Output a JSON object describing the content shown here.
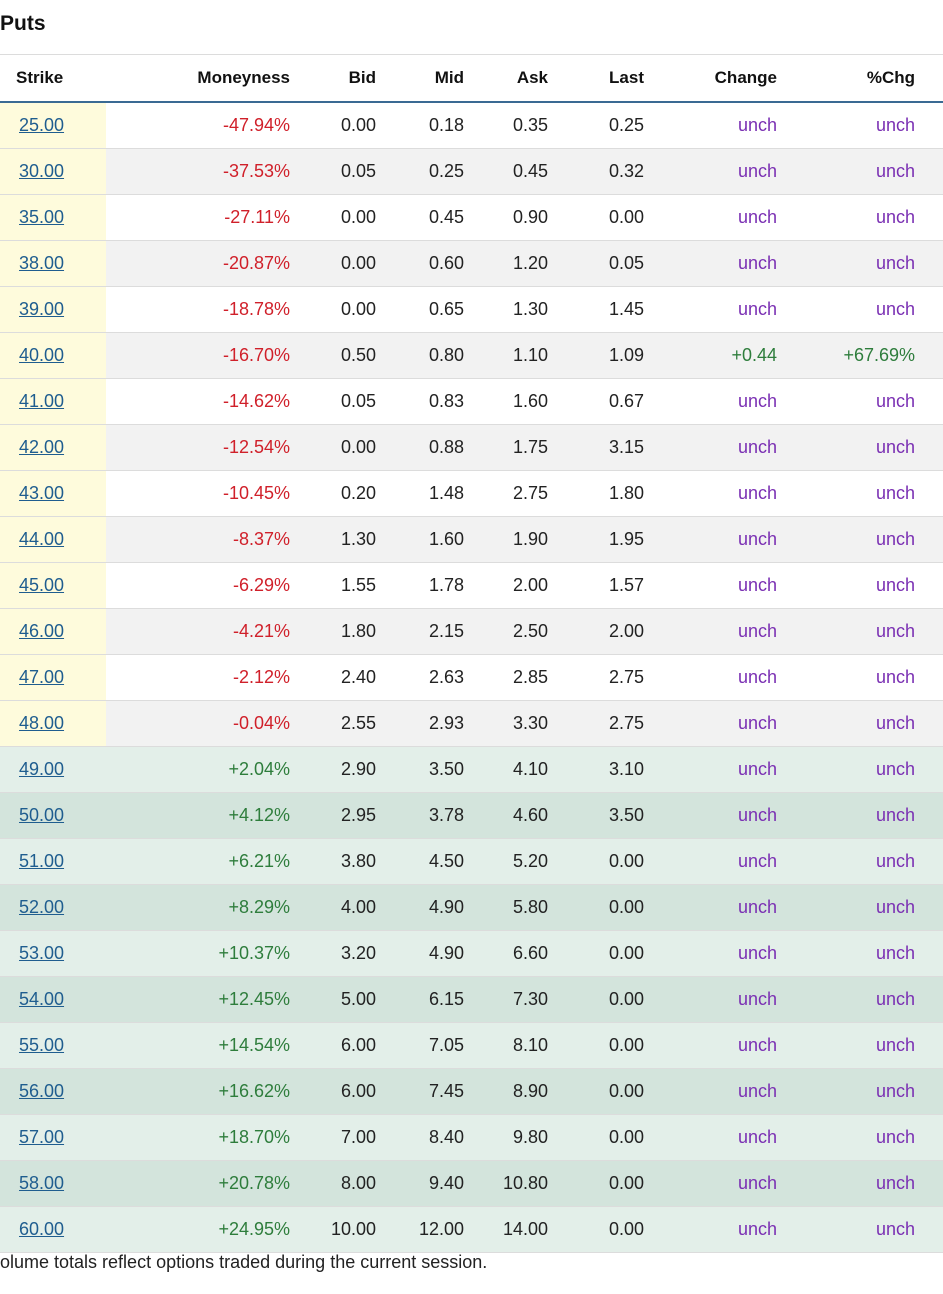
{
  "title": "Puts",
  "headers": {
    "strike": "Strike",
    "moneyness": "Moneyness",
    "bid": "Bid",
    "mid": "Mid",
    "ask": "Ask",
    "last": "Last",
    "change": "Change",
    "pct_change": "%Chg"
  },
  "rows": [
    {
      "strike": "25.00",
      "moneyness": "-47.94%",
      "bid": "0.00",
      "mid": "0.18",
      "ask": "0.35",
      "last": "0.25",
      "change": "unch",
      "pct": "unch"
    },
    {
      "strike": "30.00",
      "moneyness": "-37.53%",
      "bid": "0.05",
      "mid": "0.25",
      "ask": "0.45",
      "last": "0.32",
      "change": "unch",
      "pct": "unch"
    },
    {
      "strike": "35.00",
      "moneyness": "-27.11%",
      "bid": "0.00",
      "mid": "0.45",
      "ask": "0.90",
      "last": "0.00",
      "change": "unch",
      "pct": "unch"
    },
    {
      "strike": "38.00",
      "moneyness": "-20.87%",
      "bid": "0.00",
      "mid": "0.60",
      "ask": "1.20",
      "last": "0.05",
      "change": "unch",
      "pct": "unch"
    },
    {
      "strike": "39.00",
      "moneyness": "-18.78%",
      "bid": "0.00",
      "mid": "0.65",
      "ask": "1.30",
      "last": "1.45",
      "change": "unch",
      "pct": "unch"
    },
    {
      "strike": "40.00",
      "moneyness": "-16.70%",
      "bid": "0.50",
      "mid": "0.80",
      "ask": "1.10",
      "last": "1.09",
      "change": "+0.44",
      "pct": "+67.69%"
    },
    {
      "strike": "41.00",
      "moneyness": "-14.62%",
      "bid": "0.05",
      "mid": "0.83",
      "ask": "1.60",
      "last": "0.67",
      "change": "unch",
      "pct": "unch"
    },
    {
      "strike": "42.00",
      "moneyness": "-12.54%",
      "bid": "0.00",
      "mid": "0.88",
      "ask": "1.75",
      "last": "3.15",
      "change": "unch",
      "pct": "unch"
    },
    {
      "strike": "43.00",
      "moneyness": "-10.45%",
      "bid": "0.20",
      "mid": "1.48",
      "ask": "2.75",
      "last": "1.80",
      "change": "unch",
      "pct": "unch"
    },
    {
      "strike": "44.00",
      "moneyness": "-8.37%",
      "bid": "1.30",
      "mid": "1.60",
      "ask": "1.90",
      "last": "1.95",
      "change": "unch",
      "pct": "unch"
    },
    {
      "strike": "45.00",
      "moneyness": "-6.29%",
      "bid": "1.55",
      "mid": "1.78",
      "ask": "2.00",
      "last": "1.57",
      "change": "unch",
      "pct": "unch"
    },
    {
      "strike": "46.00",
      "moneyness": "-4.21%",
      "bid": "1.80",
      "mid": "2.15",
      "ask": "2.50",
      "last": "2.00",
      "change": "unch",
      "pct": "unch"
    },
    {
      "strike": "47.00",
      "moneyness": "-2.12%",
      "bid": "2.40",
      "mid": "2.63",
      "ask": "2.85",
      "last": "2.75",
      "change": "unch",
      "pct": "unch"
    },
    {
      "strike": "48.00",
      "moneyness": "-0.04%",
      "bid": "2.55",
      "mid": "2.93",
      "ask": "3.30",
      "last": "2.75",
      "change": "unch",
      "pct": "unch"
    },
    {
      "strike": "49.00",
      "moneyness": "+2.04%",
      "bid": "2.90",
      "mid": "3.50",
      "ask": "4.10",
      "last": "3.10",
      "change": "unch",
      "pct": "unch"
    },
    {
      "strike": "50.00",
      "moneyness": "+4.12%",
      "bid": "2.95",
      "mid": "3.78",
      "ask": "4.60",
      "last": "3.50",
      "change": "unch",
      "pct": "unch"
    },
    {
      "strike": "51.00",
      "moneyness": "+6.21%",
      "bid": "3.80",
      "mid": "4.50",
      "ask": "5.20",
      "last": "0.00",
      "change": "unch",
      "pct": "unch"
    },
    {
      "strike": "52.00",
      "moneyness": "+8.29%",
      "bid": "4.00",
      "mid": "4.90",
      "ask": "5.80",
      "last": "0.00",
      "change": "unch",
      "pct": "unch"
    },
    {
      "strike": "53.00",
      "moneyness": "+10.37%",
      "bid": "3.20",
      "mid": "4.90",
      "ask": "6.60",
      "last": "0.00",
      "change": "unch",
      "pct": "unch"
    },
    {
      "strike": "54.00",
      "moneyness": "+12.45%",
      "bid": "5.00",
      "mid": "6.15",
      "ask": "7.30",
      "last": "0.00",
      "change": "unch",
      "pct": "unch"
    },
    {
      "strike": "55.00",
      "moneyness": "+14.54%",
      "bid": "6.00",
      "mid": "7.05",
      "ask": "8.10",
      "last": "0.00",
      "change": "unch",
      "pct": "unch"
    },
    {
      "strike": "56.00",
      "moneyness": "+16.62%",
      "bid": "6.00",
      "mid": "7.45",
      "ask": "8.90",
      "last": "0.00",
      "change": "unch",
      "pct": "unch"
    },
    {
      "strike": "57.00",
      "moneyness": "+18.70%",
      "bid": "7.00",
      "mid": "8.40",
      "ask": "9.80",
      "last": "0.00",
      "change": "unch",
      "pct": "unch"
    },
    {
      "strike": "58.00",
      "moneyness": "+20.78%",
      "bid": "8.00",
      "mid": "9.40",
      "ask": "10.80",
      "last": "0.00",
      "change": "unch",
      "pct": "unch"
    },
    {
      "strike": "60.00",
      "moneyness": "+24.95%",
      "bid": "10.00",
      "mid": "12.00",
      "ask": "14.00",
      "last": "0.00",
      "change": "unch",
      "pct": "unch"
    }
  ],
  "footnote": "olume totals reflect options traded during the current session.",
  "colors": {
    "negative": "#d0202a",
    "positive": "#2e7d3c",
    "unchanged": "#7a2fb3",
    "link": "#1f5d8f",
    "otm_strike_bg": "#fefbdc",
    "itm_row_bg": "#d3e4dc",
    "header_rule": "#3a6a93"
  }
}
